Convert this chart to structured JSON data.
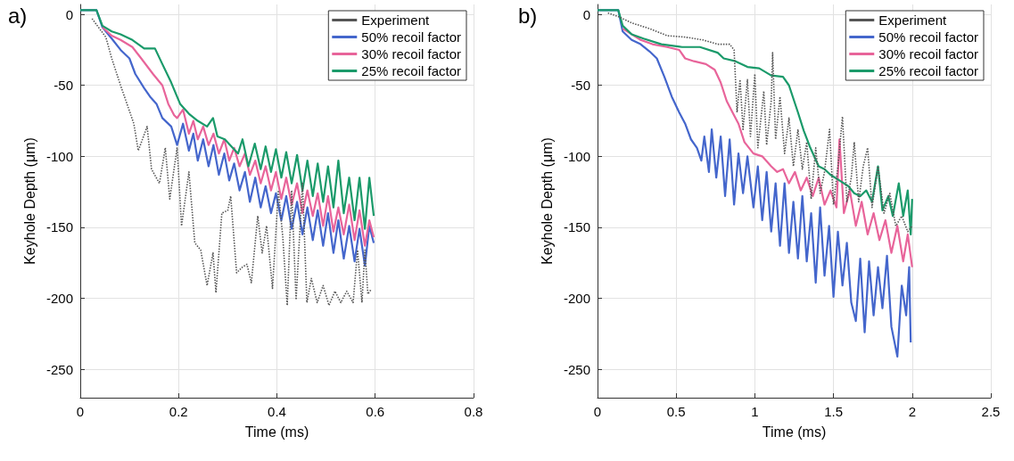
{
  "chart_data": [
    {
      "type": "line",
      "title": "a)",
      "xlabel": "Time (ms)",
      "ylabel": "Keyhole Depth (μm)",
      "xlim": [
        0,
        0.8
      ],
      "xticks": [
        0,
        0.2,
        0.4,
        0.6,
        0.8
      ],
      "ylim": [
        -270,
        7
      ],
      "yticks": [
        -250,
        -200,
        -150,
        -100,
        -50,
        0
      ],
      "grid": true,
      "legend": "top right",
      "marker": "none",
      "series": [
        {
          "name": "Experiment",
          "color": "#555555",
          "line_style": "dotted",
          "x": [
            0.024,
            0.052,
            0.064,
            0.082,
            0.097,
            0.109,
            0.118,
            0.136,
            0.145,
            0.161,
            0.173,
            0.182,
            0.197,
            0.206,
            0.221,
            0.233,
            0.245,
            0.258,
            0.27,
            0.276,
            0.288,
            0.3,
            0.306,
            0.318,
            0.33,
            0.339,
            0.348,
            0.361,
            0.37,
            0.379,
            0.391,
            0.403,
            0.412,
            0.421,
            0.43,
            0.439,
            0.452,
            0.461,
            0.47,
            0.482,
            0.494,
            0.506,
            0.518,
            0.53,
            0.542,
            0.555,
            0.564,
            0.573,
            0.579,
            0.585,
            0.591
          ],
          "values": [
            -3,
            -16,
            -31,
            -50,
            -65,
            -77,
            -96,
            -79,
            -109,
            -119,
            -94,
            -130,
            -94,
            -149,
            -111,
            -161,
            -166,
            -191,
            -168,
            -196,
            -140,
            -138,
            -128,
            -182,
            -178,
            -176,
            -189,
            -142,
            -168,
            -149,
            -193,
            -124,
            -157,
            -205,
            -124,
            -201,
            -119,
            -203,
            -186,
            -203,
            -191,
            -205,
            -195,
            -203,
            -195,
            -203,
            -166,
            -203,
            -166,
            -197,
            -194
          ]
        },
        {
          "name": "50% recoil factor",
          "color": "#4466cc",
          "line_style": "solid",
          "x": [
            0,
            0.033,
            0.045,
            0.064,
            0.082,
            0.1,
            0.112,
            0.13,
            0.142,
            0.155,
            0.167,
            0.185,
            0.197,
            0.209,
            0.221,
            0.23,
            0.239,
            0.25,
            0.261,
            0.271,
            0.282,
            0.293,
            0.303,
            0.313,
            0.324,
            0.335,
            0.345,
            0.356,
            0.367,
            0.377,
            0.388,
            0.398,
            0.409,
            0.419,
            0.43,
            0.441,
            0.452,
            0.462,
            0.473,
            0.483,
            0.494,
            0.504,
            0.515,
            0.525,
            0.536,
            0.547,
            0.558,
            0.568,
            0.579,
            0.588,
            0.597
          ],
          "values": [
            3,
            3,
            -9,
            -17,
            -25,
            -31,
            -42,
            -52,
            -58,
            -63,
            -73,
            -79,
            -92,
            -77,
            -96,
            -84,
            -103,
            -88,
            -107,
            -92,
            -113,
            -98,
            -117,
            -105,
            -124,
            -111,
            -132,
            -115,
            -136,
            -121,
            -140,
            -126,
            -145,
            -128,
            -151,
            -132,
            -155,
            -136,
            -159,
            -138,
            -163,
            -140,
            -168,
            -145,
            -172,
            -149,
            -174,
            -151,
            -177,
            -149,
            -161
          ]
        },
        {
          "name": "30% recoil factor",
          "color": "#e8649a",
          "line_style": "solid",
          "x": [
            0.045,
            0.064,
            0.082,
            0.106,
            0.124,
            0.148,
            0.167,
            0.179,
            0.191,
            0.197,
            0.209,
            0.221,
            0.23,
            0.239,
            0.25,
            0.261,
            0.271,
            0.282,
            0.293,
            0.303,
            0.313,
            0.324,
            0.335,
            0.345,
            0.356,
            0.367,
            0.377,
            0.388,
            0.398,
            0.409,
            0.419,
            0.43,
            0.441,
            0.452,
            0.462,
            0.473,
            0.483,
            0.494,
            0.504,
            0.515,
            0.525,
            0.536,
            0.547,
            0.558,
            0.568,
            0.579,
            0.588,
            0.597
          ],
          "values": [
            -9,
            -15,
            -18,
            -23,
            -31,
            -42,
            -50,
            -63,
            -71,
            -73,
            -67,
            -84,
            -75,
            -88,
            -79,
            -92,
            -84,
            -98,
            -88,
            -103,
            -94,
            -107,
            -98,
            -113,
            -103,
            -119,
            -107,
            -124,
            -111,
            -130,
            -115,
            -134,
            -119,
            -140,
            -124,
            -142,
            -126,
            -149,
            -128,
            -153,
            -136,
            -155,
            -134,
            -159,
            -138,
            -163,
            -145,
            -157
          ]
        },
        {
          "name": "25% recoil factor",
          "color": "#1a9a6a",
          "line_style": "solid",
          "x": [
            0,
            0.033,
            0.045,
            0.064,
            0.082,
            0.106,
            0.13,
            0.152,
            0.167,
            0.185,
            0.203,
            0.221,
            0.239,
            0.258,
            0.27,
            0.279,
            0.294,
            0.321,
            0.33,
            0.342,
            0.355,
            0.367,
            0.377,
            0.388,
            0.398,
            0.409,
            0.419,
            0.43,
            0.441,
            0.452,
            0.462,
            0.473,
            0.483,
            0.494,
            0.504,
            0.515,
            0.525,
            0.536,
            0.547,
            0.558,
            0.568,
            0.579,
            0.588,
            0.597
          ],
          "values": [
            3,
            3,
            -8,
            -12,
            -14,
            -18,
            -24,
            -24,
            -35,
            -48,
            -63,
            -70,
            -75,
            -79,
            -73,
            -86,
            -88,
            -98,
            -88,
            -107,
            -91,
            -109,
            -93,
            -111,
            -95,
            -115,
            -97,
            -119,
            -99,
            -124,
            -103,
            -128,
            -105,
            -132,
            -107,
            -136,
            -103,
            -140,
            -115,
            -145,
            -115,
            -151,
            -115,
            -142
          ]
        }
      ]
    },
    {
      "type": "line",
      "title": "b)",
      "xlabel": "Time (ms)",
      "ylabel": "Keyhole Depth (μm)",
      "xlim": [
        0,
        2.5
      ],
      "xticks": [
        0,
        0.5,
        1,
        1.5,
        2,
        2.5
      ],
      "ylim": [
        -270,
        7
      ],
      "yticks": [
        -250,
        -200,
        -150,
        -100,
        -50,
        0
      ],
      "grid": true,
      "legend": "top right",
      "marker": "none",
      "series": [
        {
          "name": "Experiment",
          "color": "#555555",
          "line_style": "dotted",
          "x": [
            0.066,
            0.142,
            0.217,
            0.33,
            0.443,
            0.557,
            0.67,
            0.764,
            0.84,
            0.868,
            0.887,
            0.906,
            0.925,
            0.953,
            0.972,
            1.0,
            1.019,
            1.057,
            1.075,
            1.104,
            1.113,
            1.132,
            1.16,
            1.189,
            1.217,
            1.245,
            1.274,
            1.302,
            1.33,
            1.358,
            1.387,
            1.415,
            1.443,
            1.475,
            1.5,
            1.528,
            1.557,
            1.585,
            1.613,
            1.632,
            1.66,
            1.689,
            1.717,
            1.745,
            1.783,
            1.821,
            1.858,
            1.896,
            1.934,
            1.972,
            2.0
          ],
          "values": [
            1,
            -2,
            -6,
            -10,
            -15,
            -16,
            -18,
            -21,
            -21,
            -25,
            -69,
            -46,
            -81,
            -46,
            -86,
            -42,
            -94,
            -54,
            -92,
            -61,
            -27,
            -88,
            -58,
            -98,
            -73,
            -107,
            -81,
            -109,
            -90,
            -130,
            -94,
            -126,
            -111,
            -81,
            -134,
            -107,
            -72,
            -132,
            -115,
            -90,
            -132,
            -107,
            -94,
            -136,
            -107,
            -140,
            -126,
            -149,
            -142,
            -153,
            -149
          ]
        },
        {
          "name": "50% recoil factor",
          "color": "#4466cc",
          "line_style": "solid",
          "x": [
            0,
            0.132,
            0.16,
            0.217,
            0.274,
            0.33,
            0.377,
            0.425,
            0.472,
            0.519,
            0.557,
            0.594,
            0.632,
            0.66,
            0.679,
            0.708,
            0.726,
            0.755,
            0.783,
            0.811,
            0.84,
            0.868,
            0.896,
            0.925,
            0.953,
            0.991,
            1.019,
            1.047,
            1.075,
            1.104,
            1.132,
            1.16,
            1.189,
            1.217,
            1.245,
            1.274,
            1.302,
            1.33,
            1.358,
            1.387,
            1.415,
            1.443,
            1.472,
            1.5,
            1.528,
            1.557,
            1.585,
            1.613,
            1.642,
            1.67,
            1.698,
            1.726,
            1.755,
            1.783,
            1.811,
            1.84,
            1.868,
            1.906,
            1.934,
            1.962,
            1.981,
            1.991
          ],
          "values": [
            3,
            3,
            -12,
            -18,
            -21,
            -26,
            -31,
            -44,
            -58,
            -69,
            -77,
            -88,
            -94,
            -103,
            -86,
            -111,
            -81,
            -115,
            -86,
            -128,
            -88,
            -134,
            -98,
            -126,
            -100,
            -136,
            -107,
            -145,
            -111,
            -153,
            -119,
            -163,
            -119,
            -168,
            -132,
            -172,
            -128,
            -174,
            -140,
            -189,
            -136,
            -184,
            -149,
            -199,
            -153,
            -191,
            -161,
            -203,
            -216,
            -172,
            -224,
            -174,
            -212,
            -178,
            -207,
            -170,
            -220,
            -241,
            -191,
            -212,
            -178,
            -231
          ]
        },
        {
          "name": "30% recoil factor",
          "color": "#e8649a",
          "line_style": "solid",
          "x": [
            0.16,
            0.217,
            0.274,
            0.349,
            0.443,
            0.519,
            0.557,
            0.613,
            0.689,
            0.745,
            0.783,
            0.821,
            0.858,
            0.896,
            0.934,
            0.991,
            1.047,
            1.104,
            1.142,
            1.179,
            1.217,
            1.255,
            1.292,
            1.33,
            1.368,
            1.406,
            1.443,
            1.481,
            1.519,
            1.538,
            1.566,
            1.604,
            1.642,
            1.679,
            1.717,
            1.755,
            1.792,
            1.83,
            1.868,
            1.906,
            1.943,
            1.972,
            2.0
          ],
          "values": [
            -10,
            -14,
            -18,
            -21,
            -23,
            -25,
            -31,
            -33,
            -35,
            -39,
            -48,
            -61,
            -69,
            -77,
            -90,
            -98,
            -100,
            -107,
            -111,
            -109,
            -119,
            -111,
            -124,
            -115,
            -128,
            -115,
            -134,
            -124,
            -136,
            -88,
            -140,
            -124,
            -149,
            -132,
            -155,
            -140,
            -159,
            -145,
            -168,
            -149,
            -174,
            -155,
            -178
          ]
        },
        {
          "name": "25% recoil factor",
          "color": "#1a9a6a",
          "line_style": "solid",
          "x": [
            0,
            0.132,
            0.16,
            0.217,
            0.292,
            0.406,
            0.538,
            0.651,
            0.764,
            0.802,
            0.877,
            0.953,
            1.028,
            1.104,
            1.179,
            1.217,
            1.274,
            1.311,
            1.349,
            1.406,
            1.443,
            1.481,
            1.538,
            1.594,
            1.632,
            1.67,
            1.708,
            1.745,
            1.783,
            1.811,
            1.849,
            1.877,
            1.915,
            1.943,
            1.972,
            1.991,
            2.0
          ],
          "values": [
            3,
            3,
            -8,
            -14,
            -17,
            -21,
            -23,
            -23,
            -27,
            -31,
            -33,
            -37,
            -38,
            -43,
            -44,
            -50,
            -69,
            -82,
            -93,
            -107,
            -109,
            -113,
            -117,
            -121,
            -126,
            -128,
            -124,
            -132,
            -107,
            -138,
            -128,
            -142,
            -119,
            -142,
            -124,
            -155,
            -130
          ]
        }
      ]
    }
  ]
}
